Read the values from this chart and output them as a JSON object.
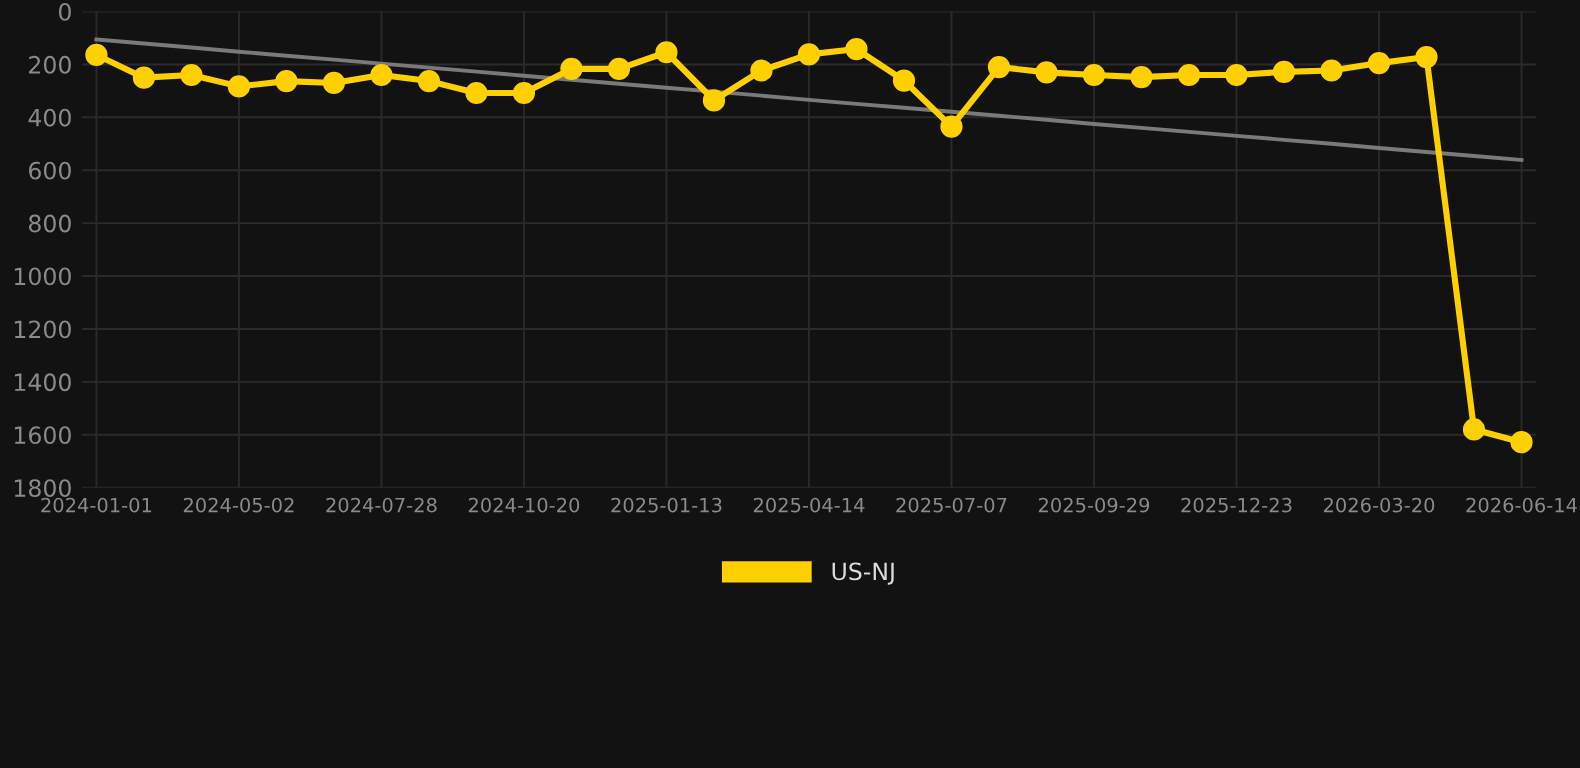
{
  "chart_data": {
    "type": "line",
    "categories": [
      "2024-01-01",
      null,
      null,
      "2024-05-02",
      null,
      null,
      "2024-07-28",
      null,
      null,
      "2024-10-20",
      null,
      null,
      "2025-01-13",
      null,
      null,
      "2025-04-14",
      null,
      null,
      "2025-07-07",
      null,
      null,
      "2025-09-29",
      null,
      null,
      "2025-12-23",
      null,
      null,
      "2026-03-20",
      null,
      null,
      "2026-06-14"
    ],
    "series": [
      {
        "name": "US-NJ",
        "color": "#ffd000",
        "marker": "circle",
        "values": [
          164,
          250,
          240,
          283,
          263,
          270,
          240,
          263,
          308,
          308,
          217,
          217,
          154,
          336,
          223,
          162,
          142,
          261,
          435,
          210,
          230,
          240,
          248,
          240,
          240,
          228,
          223,
          195,
          172,
          1580,
          1628
        ]
      },
      {
        "type": "line",
        "color": "#7a7a7a",
        "marker": "none",
        "values": [
          106,
          121,
          136,
          152,
          167,
          182,
          197,
          212,
          227,
          243,
          258,
          273,
          288,
          303,
          318,
          334,
          349,
          364,
          379,
          394,
          409,
          425,
          440,
          455,
          470,
          485,
          500,
          516,
          531,
          546,
          561
        ]
      }
    ],
    "ylim": [
      1800,
      0
    ],
    "yticks": [
      0,
      200,
      400,
      600,
      800,
      1000,
      1200,
      1400,
      1600,
      1800
    ],
    "grid": true,
    "legend": "bottom"
  }
}
